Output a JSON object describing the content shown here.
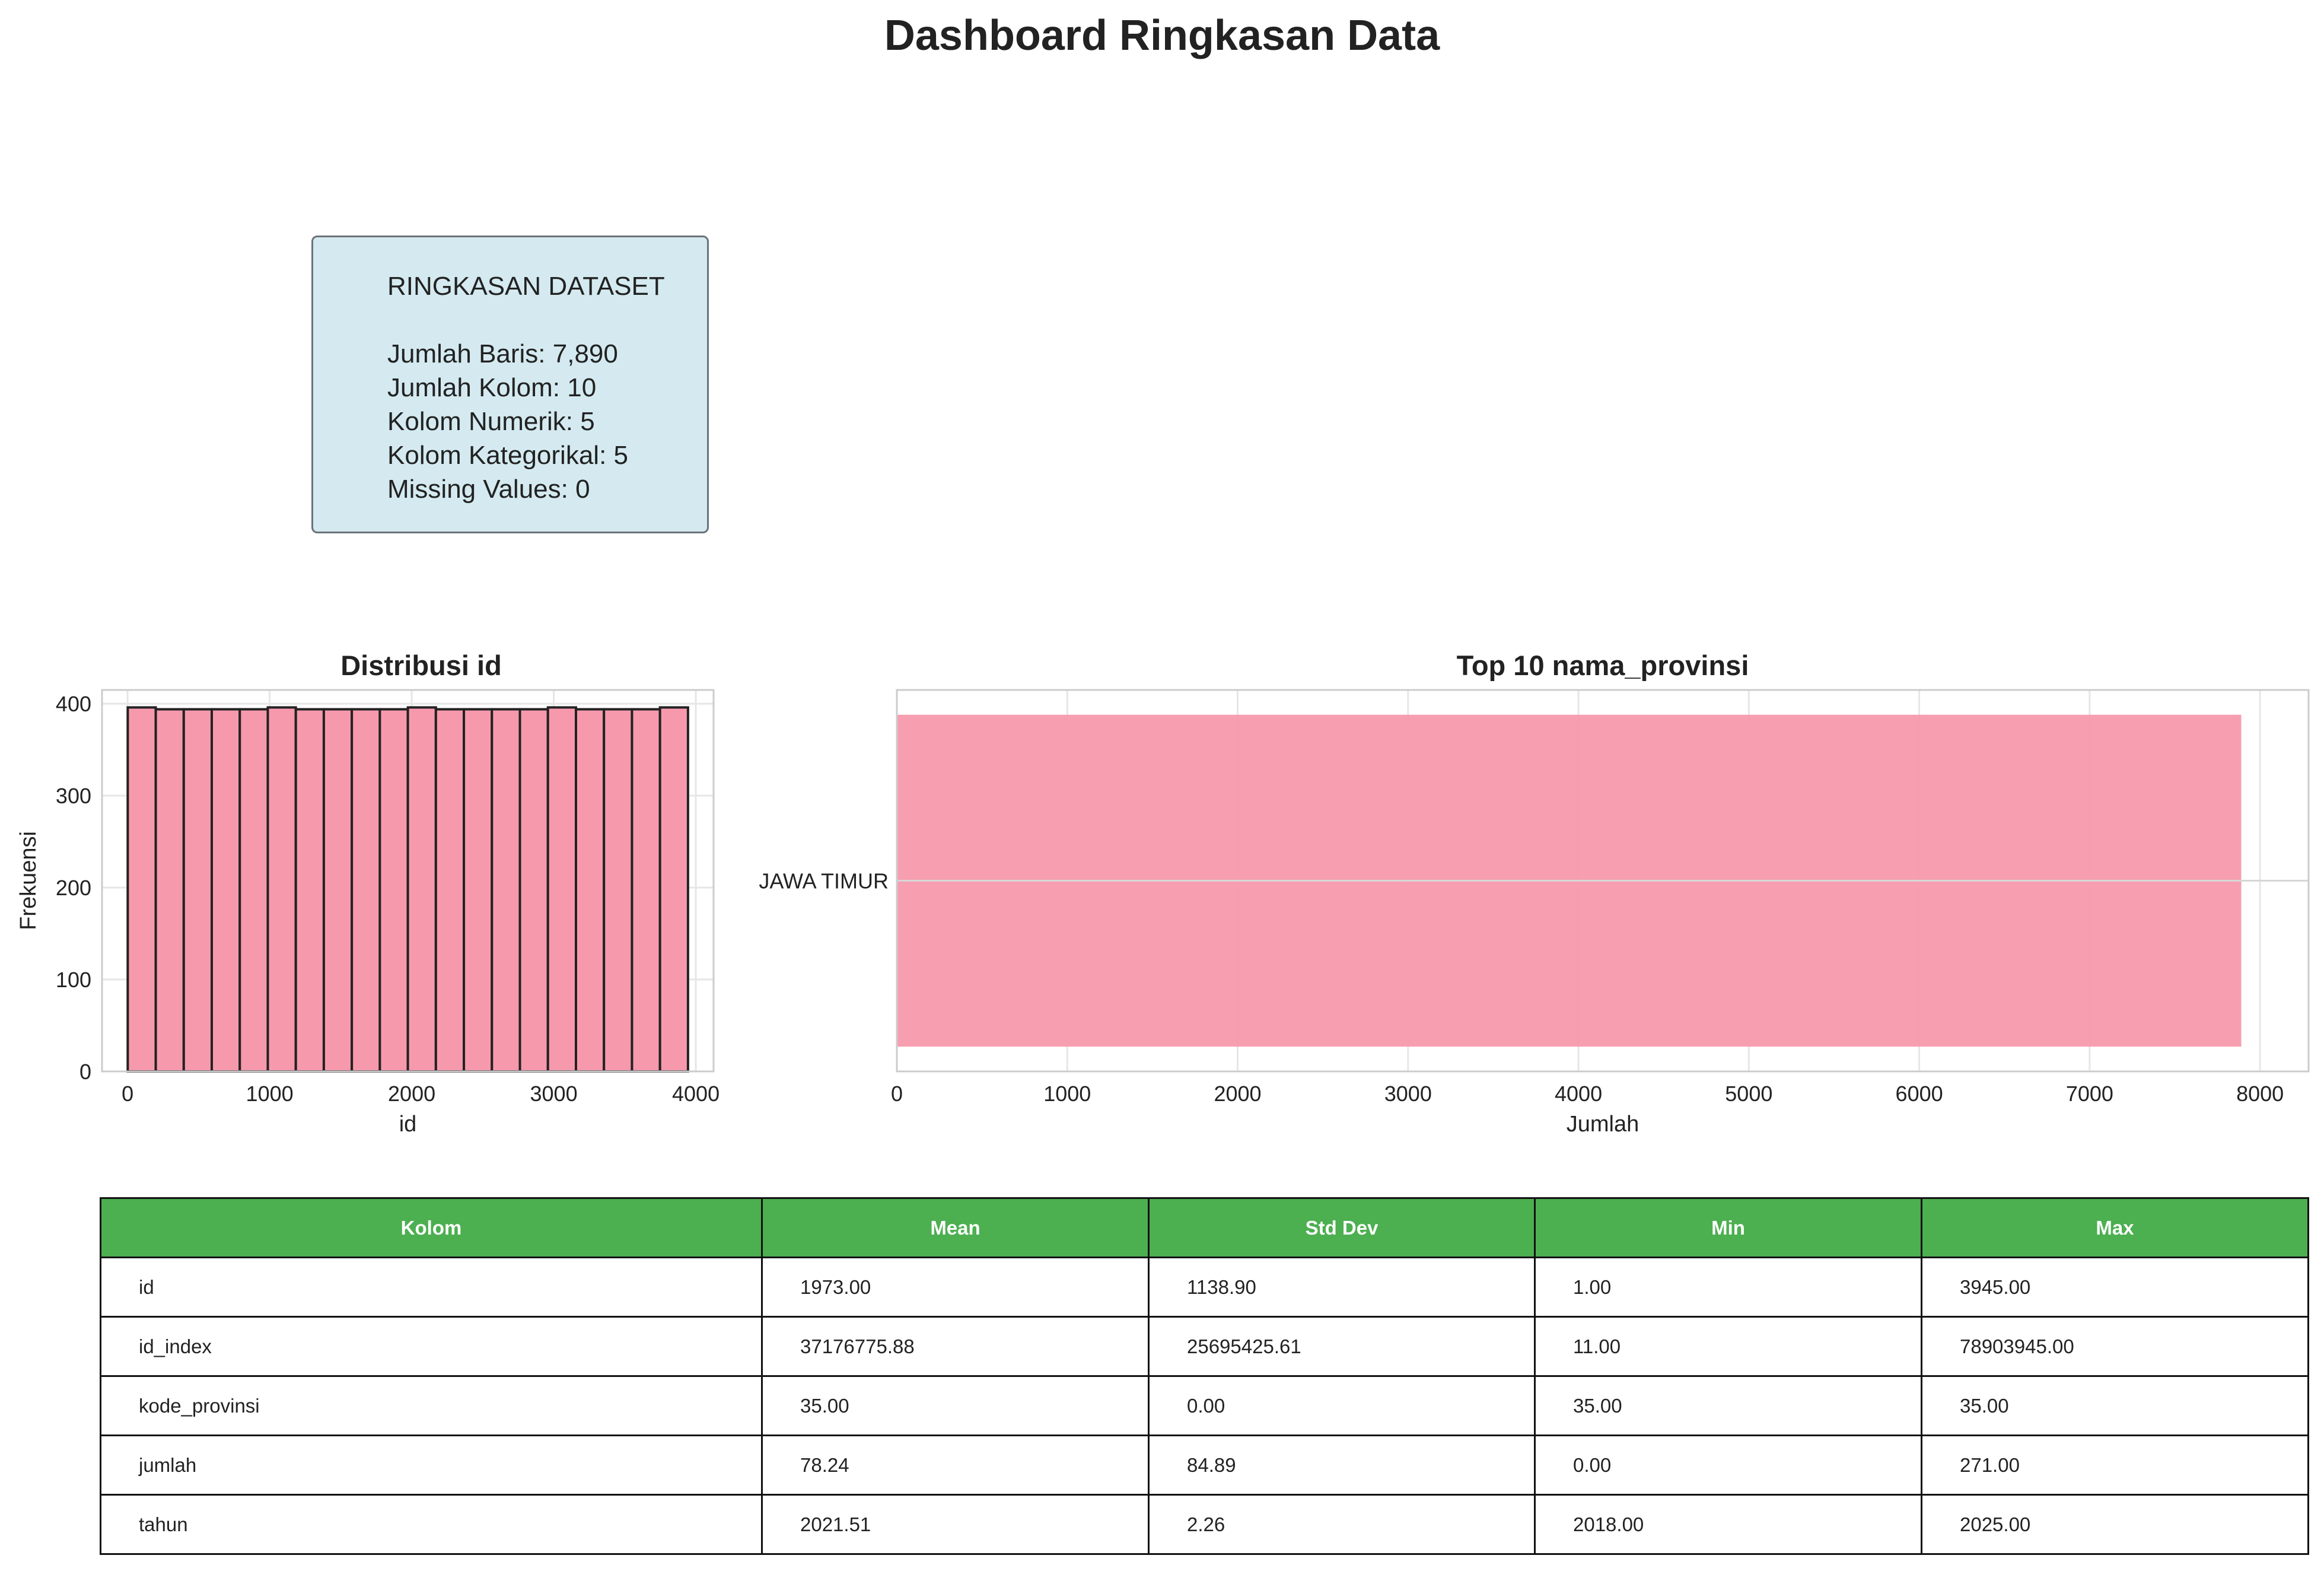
{
  "title": "Dashboard Ringkasan Data",
  "summary": {
    "heading": "RINGKASAN DATASET",
    "lines": [
      "Jumlah Baris: 7,890",
      "Jumlah Kolom: 10",
      "Kolom Numerik: 5",
      "Kolom Kategorikal: 5",
      "Missing Values: 0"
    ]
  },
  "chart_data": [
    {
      "type": "bar",
      "subtype": "histogram",
      "title": "Distribusi id",
      "xlabel": "id",
      "ylabel": "Frekuensi",
      "bin_edges": [
        1,
        198.2,
        395.4,
        592.6,
        789.8,
        987,
        1184.2,
        1381.4,
        1578.6,
        1775.8,
        1973,
        2170.2,
        2367.4,
        2564.6,
        2761.8,
        2959,
        3156.2,
        3353.4,
        3550.6,
        3747.8,
        3945
      ],
      "values": [
        396,
        394,
        394,
        394,
        394,
        396,
        394,
        394,
        394,
        394,
        396,
        394,
        394,
        394,
        394,
        396,
        394,
        394,
        394,
        396
      ],
      "xlim": [
        -180,
        4125
      ],
      "ylim": [
        0,
        415
      ],
      "xticks": [
        0,
        1000,
        2000,
        3000,
        4000
      ],
      "yticks": [
        0,
        100,
        200,
        300,
        400
      ],
      "grid": true,
      "color": "#f799ad",
      "edge_color": "#222222"
    },
    {
      "type": "bar",
      "orientation": "horizontal",
      "title": "Top 10 nama_provinsi",
      "xlabel": "Jumlah",
      "ylabel": "",
      "categories": [
        "JAWA TIMUR"
      ],
      "values": [
        7890
      ],
      "xlim": [
        0,
        8285
      ],
      "xticks": [
        0,
        1000,
        2000,
        3000,
        4000,
        5000,
        6000,
        7000,
        8000
      ],
      "grid": true,
      "color": "#f799ad"
    }
  ],
  "table": {
    "headers": [
      "Kolom",
      "Mean",
      "Std Dev",
      "Min",
      "Max"
    ],
    "rows": [
      [
        "id",
        "1973.00",
        "1138.90",
        "1.00",
        "3945.00"
      ],
      [
        "id_index",
        "37176775.88",
        "25695425.61",
        "11.00",
        "78903945.00"
      ],
      [
        "kode_provinsi",
        "35.00",
        "0.00",
        "35.00",
        "35.00"
      ],
      [
        "jumlah",
        "78.24",
        "84.89",
        "0.00",
        "271.00"
      ],
      [
        "tahun",
        "2021.51",
        "2.26",
        "2018.00",
        "2025.00"
      ]
    ],
    "header_color": "#4caf50"
  }
}
